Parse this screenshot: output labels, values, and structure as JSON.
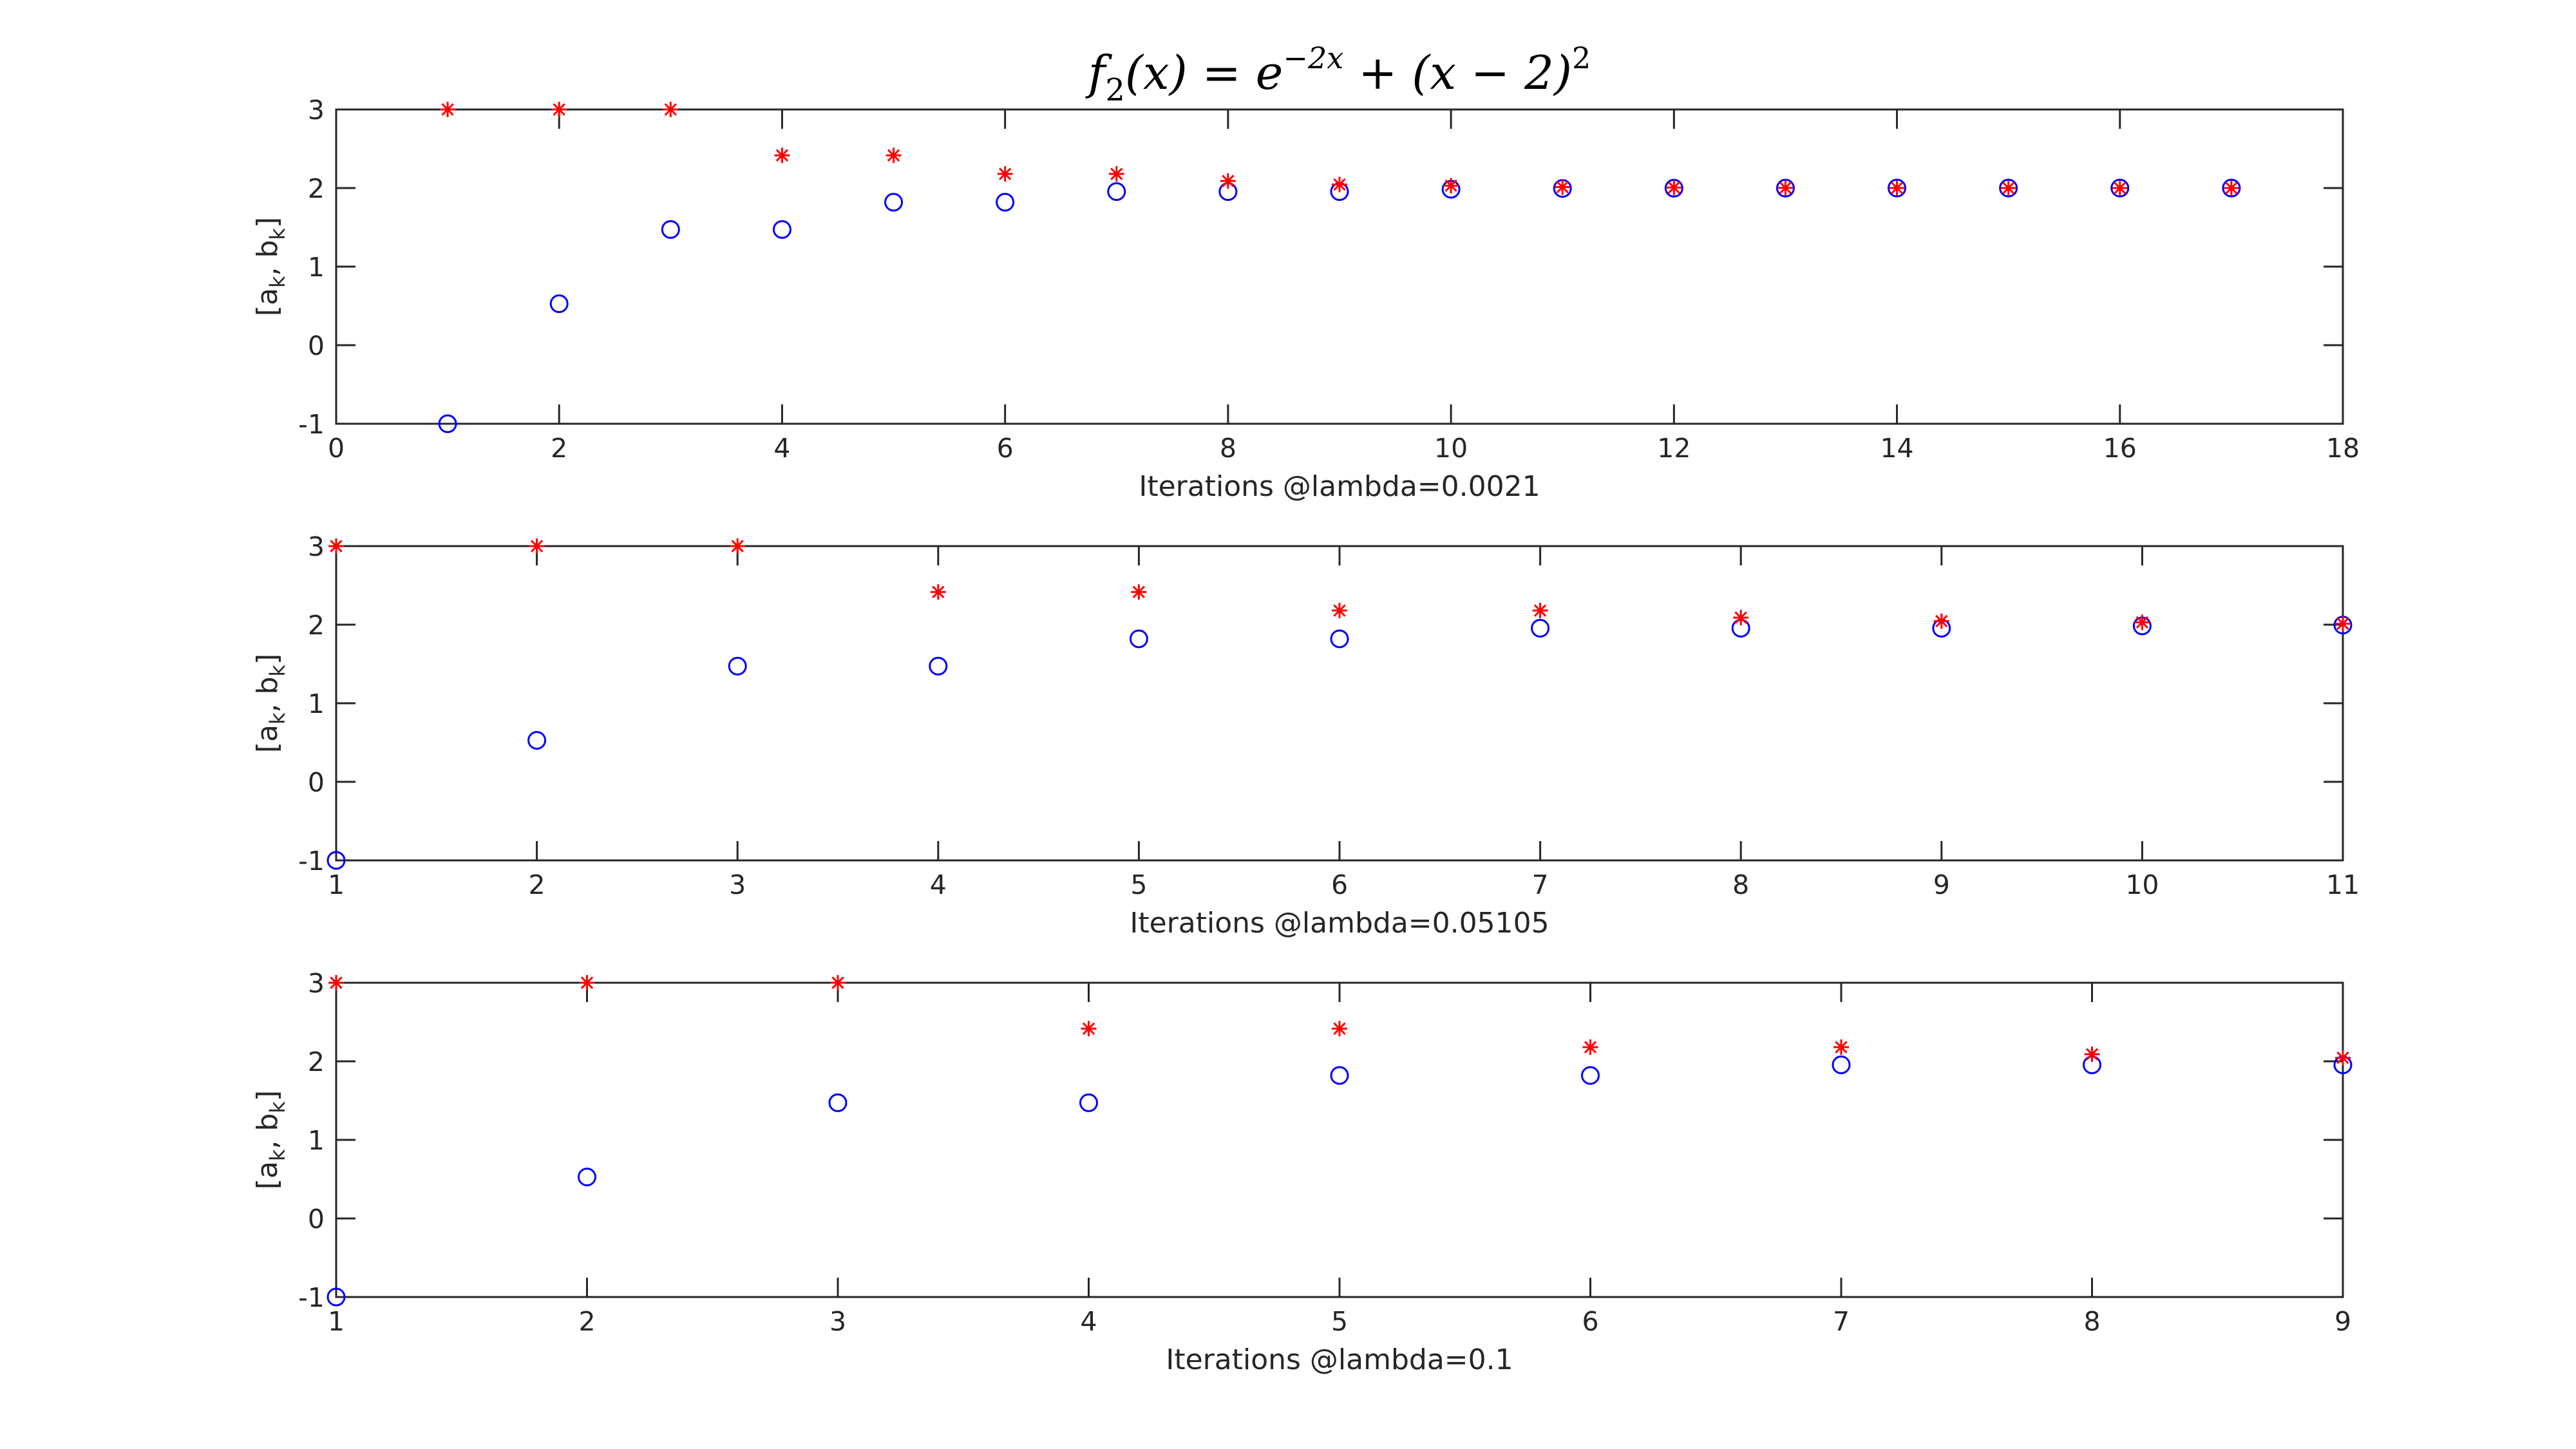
{
  "figure": {
    "title_parts": {
      "f": "f",
      "f_sub": "2",
      "lhs_arg": "(x) = e",
      "exp": "−2x",
      "rhs": " + (x − 2)",
      "sq": "2"
    }
  },
  "chart_data": [
    {
      "type": "scatter",
      "xlabel": "Iterations @lambda=0.0021",
      "ylabel": {
        "main": "[a",
        "sub1": "k",
        "mid": ", b",
        "sub2": "k",
        "end": "]"
      },
      "xlim": [
        0,
        18
      ],
      "ylim": [
        -1,
        3
      ],
      "xticks": [
        0,
        2,
        4,
        6,
        8,
        10,
        12,
        14,
        16,
        18
      ],
      "yticks": [
        -1,
        0,
        1,
        2,
        3
      ],
      "series": [
        {
          "marker": "circle",
          "color": "#0000ff",
          "x": [
            1,
            2,
            3,
            4,
            5,
            6,
            7,
            8,
            9,
            10,
            11,
            12,
            13,
            14,
            15,
            16,
            17
          ],
          "y": [
            -1,
            0.528,
            1.472,
            1.472,
            1.82,
            1.82,
            1.955,
            1.955,
            1.955,
            1.985,
            1.995,
            1.998,
            1.999,
            2.0,
            2.0,
            2.0,
            2.0
          ]
        },
        {
          "marker": "asterisk",
          "color": "#ff0000",
          "x": [
            1,
            2,
            3,
            4,
            5,
            6,
            7,
            8,
            9,
            10,
            11,
            12,
            13,
            14,
            15,
            16,
            17
          ],
          "y": [
            3,
            3,
            3,
            2.416,
            2.416,
            2.18,
            2.18,
            2.09,
            2.045,
            2.03,
            2.012,
            2.006,
            2.003,
            2.001,
            2.0,
            2.0,
            2.0
          ]
        }
      ]
    },
    {
      "type": "scatter",
      "xlabel": "Iterations @lambda=0.05105",
      "ylabel": {
        "main": "[a",
        "sub1": "k",
        "mid": ", b",
        "sub2": "k",
        "end": "]"
      },
      "xlim": [
        1,
        11
      ],
      "ylim": [
        -1,
        3
      ],
      "xticks": [
        1,
        2,
        3,
        4,
        5,
        6,
        7,
        8,
        9,
        10,
        11
      ],
      "yticks": [
        -1,
        0,
        1,
        2,
        3
      ],
      "series": [
        {
          "marker": "circle",
          "color": "#0000ff",
          "x": [
            1,
            2,
            3,
            4,
            5,
            6,
            7,
            8,
            9,
            10,
            11
          ],
          "y": [
            -1,
            0.528,
            1.472,
            1.472,
            1.82,
            1.82,
            1.955,
            1.955,
            1.955,
            1.985,
            1.995
          ]
        },
        {
          "marker": "asterisk",
          "color": "#ff0000",
          "x": [
            1,
            2,
            3,
            4,
            5,
            6,
            7,
            8,
            9,
            10,
            11
          ],
          "y": [
            3,
            3,
            3,
            2.416,
            2.416,
            2.18,
            2.18,
            2.09,
            2.045,
            2.03,
            2.012
          ]
        }
      ]
    },
    {
      "type": "scatter",
      "xlabel": "Iterations @lambda=0.1",
      "ylabel": {
        "main": "[a",
        "sub1": "k",
        "mid": ", b",
        "sub2": "k",
        "end": "]"
      },
      "xlim": [
        1,
        9
      ],
      "ylim": [
        -1,
        3
      ],
      "xticks": [
        1,
        2,
        3,
        4,
        5,
        6,
        7,
        8,
        9
      ],
      "yticks": [
        -1,
        0,
        1,
        2,
        3
      ],
      "series": [
        {
          "marker": "circle",
          "color": "#0000ff",
          "x": [
            1,
            2,
            3,
            4,
            5,
            6,
            7,
            8,
            9
          ],
          "y": [
            -1,
            0.528,
            1.472,
            1.472,
            1.82,
            1.82,
            1.955,
            1.955,
            1.955
          ]
        },
        {
          "marker": "asterisk",
          "color": "#ff0000",
          "x": [
            1,
            2,
            3,
            4,
            5,
            6,
            7,
            8,
            9
          ],
          "y": [
            3,
            3,
            3,
            2.416,
            2.416,
            2.18,
            2.18,
            2.09,
            2.045
          ]
        }
      ]
    }
  ]
}
